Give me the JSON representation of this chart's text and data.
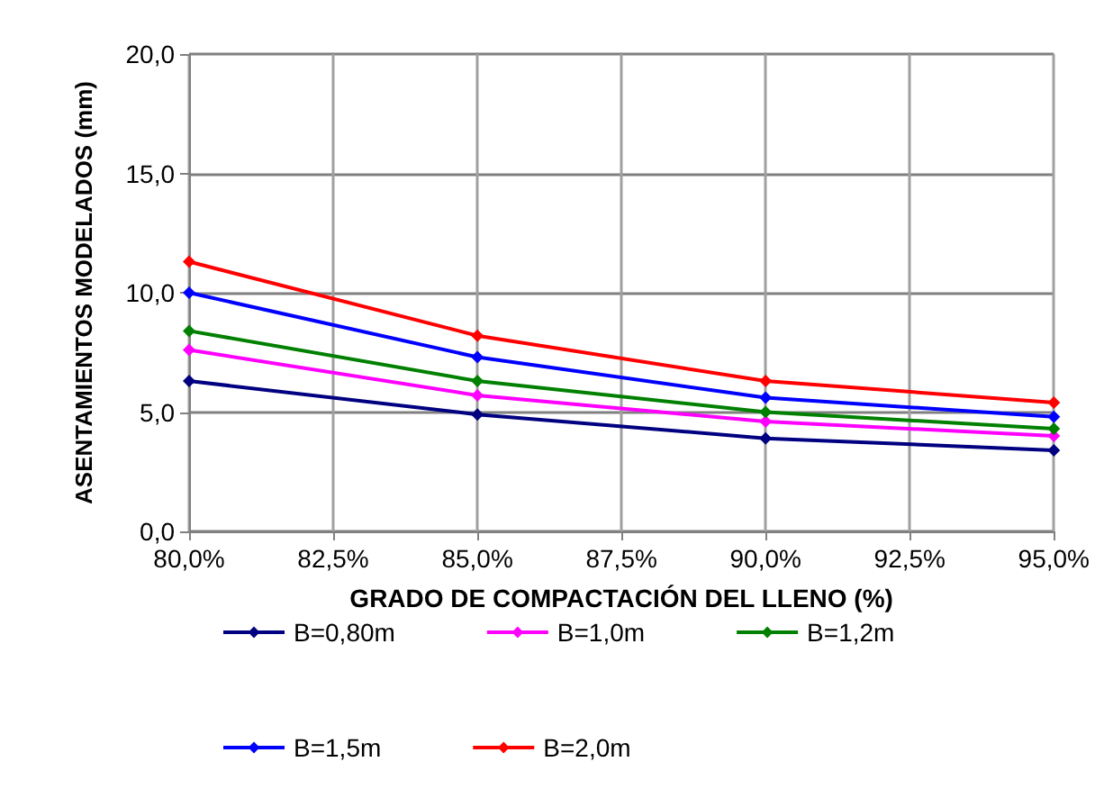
{
  "chart_data": {
    "type": "line",
    "xlabel": "GRADO DE COMPACTACIÓN DEL LLENO (%)",
    "ylabel": "ASENTAMIENTOS MODELADOS (mm)",
    "x": [
      80,
      85,
      90,
      95
    ],
    "series": [
      {
        "name": "B=0,80m",
        "color": "#000080",
        "values": [
          6.3,
          4.9,
          3.9,
          3.4
        ]
      },
      {
        "name": "B=1,0m",
        "color": "#ff00ff",
        "values": [
          7.6,
          5.7,
          4.6,
          4.0
        ]
      },
      {
        "name": "B=1,2m",
        "color": "#008000",
        "values": [
          8.4,
          6.3,
          5.0,
          4.3
        ]
      },
      {
        "name": "B=1,5m",
        "color": "#0000ff",
        "values": [
          10.0,
          7.3,
          5.6,
          4.8
        ]
      },
      {
        "name": "B=2,0m",
        "color": "#ff0000",
        "values": [
          11.3,
          8.2,
          6.3,
          5.4
        ]
      }
    ],
    "xlim": [
      80,
      95
    ],
    "xticks": [
      {
        "value": 80,
        "label": "80,0%"
      },
      {
        "value": 82.5,
        "label": "82,5%"
      },
      {
        "value": 85,
        "label": "85,0%"
      },
      {
        "value": 87.5,
        "label": "87,5%"
      },
      {
        "value": 90,
        "label": "90,0%"
      },
      {
        "value": 92.5,
        "label": "92,5%"
      },
      {
        "value": 95,
        "label": "95,0%"
      }
    ],
    "ylim": [
      0,
      20
    ],
    "yticks": [
      {
        "value": 0,
        "label": "0,0"
      },
      {
        "value": 5,
        "label": "5,0"
      },
      {
        "value": 10,
        "label": "10,0"
      },
      {
        "value": 15,
        "label": "15,0"
      },
      {
        "value": 20,
        "label": "20,0"
      }
    ],
    "grid": true,
    "legend": "bottom",
    "marker": "diamond",
    "line_style": "solid"
  }
}
